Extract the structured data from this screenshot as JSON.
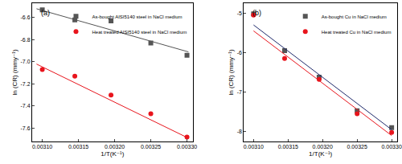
{
  "chart_data": [
    {
      "type": "scatter",
      "title": "(a)",
      "x_label": "1/T(K⁻¹)",
      "y_label": "ln (CR) (mmy⁻¹)",
      "xlim": [
        0.003086,
        0.003308
      ],
      "xticks": [
        {
          "value": 0.0031,
          "label": "0.00310"
        },
        {
          "value": 0.00315,
          "label": "0.00315"
        },
        {
          "value": 0.0032,
          "label": "0.00320"
        },
        {
          "value": 0.00325,
          "label": "0.00325"
        },
        {
          "value": 0.0033,
          "label": "0.00330"
        }
      ],
      "ylim": [
        -7.72,
        -6.47
      ],
      "yticks": [
        {
          "value": -7.6,
          "label": "-7.6"
        },
        {
          "value": -7.4,
          "label": "-7.4"
        },
        {
          "value": -7.2,
          "label": "-7.2"
        },
        {
          "value": -7.0,
          "label": "-7.0"
        },
        {
          "value": -6.8,
          "label": "-6.8"
        },
        {
          "value": -6.6,
          "label": "-6.6"
        }
      ],
      "legend": "upper right",
      "series": [
        {
          "name": "As-bought AISI5140 steel in NaCl medium",
          "type": "scatter",
          "marker": "square",
          "color": "#555555",
          "x": [
            0.0031,
            0.003145,
            0.003195,
            0.00325,
            0.0033
          ],
          "values": [
            -6.53,
            -6.62,
            -6.63,
            -6.83,
            -6.94
          ]
        },
        {
          "name": "Heat treated AISI5140 steel in NaCl medium",
          "type": "scatter",
          "marker": "circle",
          "color": "#e8141c",
          "x": [
            0.0031,
            0.003145,
            0.003195,
            0.00325,
            0.0033
          ],
          "values": [
            -7.07,
            -7.13,
            -7.3,
            -7.47,
            -7.68
          ]
        },
        {
          "type": "line",
          "color": "#555555",
          "x": [
            0.003092,
            0.003302
          ],
          "values": [
            -6.52,
            -6.91
          ]
        },
        {
          "type": "line",
          "color": "#e8141c",
          "x": [
            0.003092,
            0.003302
          ],
          "values": [
            -7.02,
            -7.69
          ]
        }
      ]
    },
    {
      "type": "scatter",
      "title": "(b)",
      "x_label": "1/T(K⁻¹)",
      "y_label": "ln (CR) (mmy⁻¹)",
      "xlim": [
        0.003086,
        0.003308
      ],
      "xticks": [
        {
          "value": 0.0031,
          "label": "0.00310"
        },
        {
          "value": 0.00315,
          "label": "0.00315"
        },
        {
          "value": 0.0032,
          "label": "0.00320"
        },
        {
          "value": 0.00325,
          "label": "0.00325"
        },
        {
          "value": 0.0033,
          "label": "0.00330"
        }
      ],
      "ylim": [
        -8.25,
        -4.75
      ],
      "yticks": [
        -8,
        -7,
        -6,
        -5
      ],
      "legend": "upper right",
      "series": [
        {
          "name": "As-bought Cu in NaCl medium",
          "type": "scatter",
          "marker": "square",
          "color": "#555555",
          "x": [
            0.0031,
            0.003145,
            0.003195,
            0.00325,
            0.0033
          ],
          "values": [
            -5.02,
            -5.95,
            -6.62,
            -7.47,
            -7.9
          ]
        },
        {
          "name": "Heat treated Cu in NaCl medium",
          "type": "scatter",
          "marker": "circle",
          "color": "#e8141c",
          "x": [
            0.0031,
            0.003145,
            0.003195,
            0.00325,
            0.0033
          ],
          "values": [
            -5.05,
            -6.15,
            -6.68,
            -7.55,
            -8.02
          ]
        },
        {
          "type": "line",
          "color": "#1f2a6b",
          "x": [
            0.0031,
            0.0033
          ],
          "values": [
            -5.3,
            -7.95
          ]
        },
        {
          "type": "line",
          "color": "#e8141c",
          "x": [
            0.0031,
            0.0033
          ],
          "values": [
            -5.45,
            -8.1
          ]
        }
      ]
    }
  ]
}
